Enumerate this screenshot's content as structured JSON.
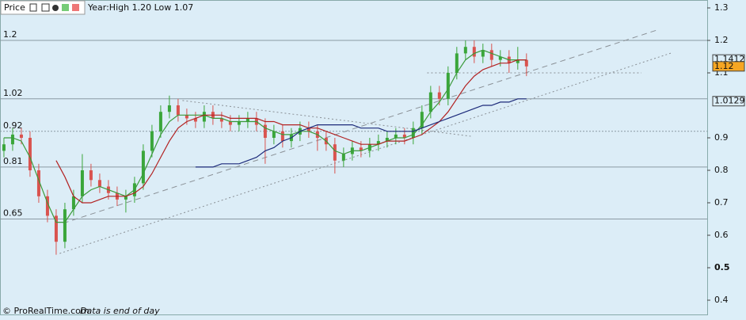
{
  "chart_data": {
    "type": "candlestick",
    "title": "Price",
    "subtitle": "Year:High 1.20 Low 1.07",
    "footer": "© ProRealTime.com",
    "footer_note": "Data is end of day",
    "xlim": [
      -0.45,
      80.75
    ],
    "ylim": [
      0.361,
      1.3244
    ],
    "yticks": [
      1.3,
      1.2,
      1.1,
      0.9,
      0.8,
      0.7,
      0.6,
      0.5,
      0.4
    ],
    "up_color": "#3aa63a",
    "down_color": "#d9534f",
    "open": [
      0.86,
      0.88,
      0.91,
      0.9,
      0.8,
      0.72,
      0.66,
      0.58,
      0.68,
      0.72,
      0.8,
      0.77,
      0.75,
      0.73,
      0.71,
      0.72,
      0.76,
      0.86,
      0.92,
      0.98,
      1.0,
      0.97,
      0.96,
      0.95,
      0.98,
      0.96,
      0.95,
      0.94,
      0.95,
      0.96,
      0.94,
      0.9,
      0.92,
      0.89,
      0.91,
      0.93,
      0.92,
      0.9,
      0.88,
      0.83,
      0.85,
      0.87,
      0.86,
      0.88,
      0.89,
      0.9,
      0.91,
      0.9,
      0.93,
      0.98,
      1.04,
      1.02,
      1.1,
      1.16,
      1.18,
      1.15,
      1.17,
      1.14,
      1.15,
      1.13,
      1.14
    ],
    "high": [
      0.9,
      0.93,
      0.93,
      0.92,
      0.82,
      0.74,
      0.68,
      0.7,
      0.74,
      0.85,
      0.82,
      0.79,
      0.77,
      0.75,
      0.74,
      0.78,
      0.88,
      0.94,
      1.0,
      1.03,
      1.02,
      0.99,
      0.98,
      1.0,
      1.0,
      0.98,
      0.97,
      0.97,
      0.98,
      0.98,
      0.96,
      0.94,
      0.94,
      0.93,
      0.95,
      0.95,
      0.94,
      0.92,
      0.9,
      0.87,
      0.89,
      0.89,
      0.9,
      0.91,
      0.92,
      0.93,
      0.93,
      0.95,
      1.0,
      1.06,
      1.06,
      1.12,
      1.18,
      1.2,
      1.2,
      1.19,
      1.19,
      1.17,
      1.17,
      1.18,
      1.16
    ],
    "low": [
      0.84,
      0.86,
      0.88,
      0.78,
      0.7,
      0.64,
      0.54,
      0.56,
      0.66,
      0.7,
      0.75,
      0.73,
      0.71,
      0.69,
      0.67,
      0.7,
      0.74,
      0.84,
      0.9,
      0.96,
      0.95,
      0.94,
      0.93,
      0.93,
      0.94,
      0.93,
      0.92,
      0.92,
      0.93,
      0.92,
      0.82,
      0.88,
      0.87,
      0.87,
      0.89,
      0.9,
      0.86,
      0.86,
      0.79,
      0.81,
      0.83,
      0.84,
      0.84,
      0.86,
      0.87,
      0.88,
      0.88,
      0.88,
      0.91,
      0.96,
      1.0,
      1.0,
      1.08,
      1.14,
      1.13,
      1.13,
      1.12,
      1.12,
      1.1,
      1.11,
      1.09
    ],
    "close": [
      0.88,
      0.91,
      0.9,
      0.8,
      0.72,
      0.66,
      0.58,
      0.68,
      0.72,
      0.8,
      0.77,
      0.75,
      0.73,
      0.71,
      0.72,
      0.76,
      0.86,
      0.92,
      0.98,
      1.0,
      0.97,
      0.96,
      0.95,
      0.98,
      0.96,
      0.95,
      0.94,
      0.95,
      0.96,
      0.94,
      0.9,
      0.92,
      0.89,
      0.91,
      0.93,
      0.92,
      0.9,
      0.88,
      0.83,
      0.85,
      0.87,
      0.86,
      0.88,
      0.89,
      0.9,
      0.91,
      0.9,
      0.93,
      0.98,
      1.04,
      1.02,
      1.1,
      1.16,
      1.18,
      1.15,
      1.17,
      1.14,
      1.15,
      1.13,
      1.14,
      1.12
    ],
    "averages": [
      {
        "color": "#3a9a3a",
        "values": [
          0.9,
          0.9,
          0.89,
          0.84,
          0.77,
          0.7,
          0.64,
          0.64,
          0.68,
          0.72,
          0.74,
          0.75,
          0.74,
          0.73,
          0.72,
          0.74,
          0.79,
          0.85,
          0.91,
          0.95,
          0.97,
          0.97,
          0.97,
          0.97,
          0.96,
          0.96,
          0.95,
          0.95,
          0.95,
          0.95,
          0.93,
          0.92,
          0.91,
          0.91,
          0.92,
          0.92,
          0.91,
          0.89,
          0.86,
          0.85,
          0.86,
          0.86,
          0.87,
          0.88,
          0.89,
          0.9,
          0.9,
          0.91,
          0.94,
          0.98,
          1.01,
          1.05,
          1.1,
          1.14,
          1.16,
          1.17,
          1.16,
          1.15,
          1.14,
          1.14,
          1.14
        ]
      },
      {
        "color": "#b22222",
        "values": [
          null,
          null,
          null,
          null,
          null,
          null,
          0.83,
          0.78,
          0.72,
          0.7,
          0.7,
          0.71,
          0.72,
          0.72,
          0.72,
          0.73,
          0.75,
          0.79,
          0.84,
          0.89,
          0.93,
          0.95,
          0.96,
          0.97,
          0.97,
          0.97,
          0.96,
          0.96,
          0.96,
          0.96,
          0.95,
          0.95,
          0.94,
          0.94,
          0.94,
          0.93,
          0.93,
          0.92,
          0.91,
          0.9,
          0.89,
          0.88,
          0.88,
          0.88,
          0.89,
          0.89,
          0.89,
          0.9,
          0.91,
          0.93,
          0.95,
          0.98,
          1.02,
          1.06,
          1.09,
          1.11,
          1.12,
          1.13,
          1.13,
          1.14,
          1.14
        ]
      },
      {
        "color": "#1c2a7a",
        "values": [
          null,
          null,
          null,
          null,
          null,
          null,
          null,
          null,
          null,
          null,
          null,
          null,
          null,
          null,
          null,
          null,
          null,
          null,
          null,
          null,
          null,
          null,
          0.81,
          0.81,
          0.81,
          0.82,
          0.82,
          0.82,
          0.83,
          0.84,
          0.86,
          0.87,
          0.89,
          0.9,
          0.92,
          0.93,
          0.94,
          0.94,
          0.94,
          0.94,
          0.94,
          0.93,
          0.93,
          0.93,
          0.92,
          0.92,
          0.92,
          0.92,
          0.93,
          0.94,
          0.95,
          0.96,
          0.97,
          0.98,
          0.99,
          1.0,
          1.0,
          1.01,
          1.01,
          1.02,
          1.02
        ]
      }
    ],
    "levels": [
      1.2,
      1.02,
      0.92,
      0.81,
      0.65
    ],
    "trendlines": [
      {
        "x": [
          6.8,
          75
        ],
        "y": [
          0.637,
          1.232
        ],
        "style": "dashed"
      },
      {
        "x": [
          6.4,
          76.6
        ],
        "y": [
          0.544,
          1.161
        ],
        "style": "dotted"
      },
      {
        "x": [
          20.5,
          53.6
        ],
        "y": [
          1.015,
          0.905
        ],
        "style": "dotted"
      },
      {
        "x": [
          48.6,
          73.2
        ],
        "y": [
          1.1,
          1.1
        ],
        "style": "dotted"
      }
    ],
    "price_markers": [
      {
        "value": 1.1412,
        "color": "#dceef8"
      },
      {
        "value": 1.12,
        "color": "#f5a623"
      },
      {
        "value": 1.0129,
        "color": "#dceef8"
      }
    ]
  }
}
